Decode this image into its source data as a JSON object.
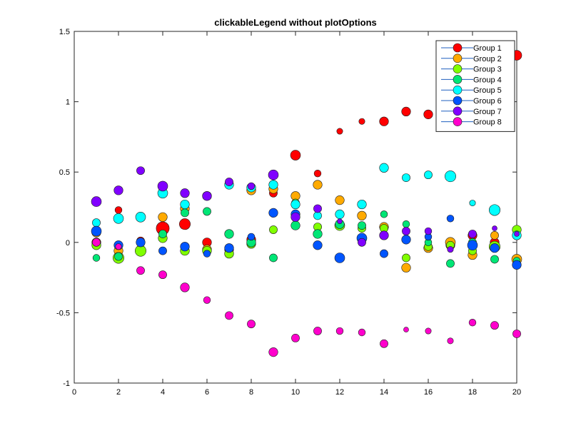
{
  "chart_data": {
    "type": "scatter",
    "title": "clickableLegend without plotOptions",
    "xlabel": "",
    "ylabel": "",
    "xlim": [
      0,
      20
    ],
    "ylim": [
      -1,
      1.5
    ],
    "xticks": [
      "0",
      "2",
      "4",
      "6",
      "8",
      "10",
      "12",
      "14",
      "16",
      "18",
      "20"
    ],
    "yticks": [
      "-1",
      "-0.5",
      "0",
      "0.5",
      "1",
      "1.5"
    ],
    "grid": false,
    "legend_position": "top-right",
    "x": [
      1,
      2,
      3,
      4,
      5,
      6,
      7,
      8,
      9,
      10,
      11,
      12,
      13,
      14,
      15,
      16,
      17,
      18,
      19,
      20
    ],
    "series": [
      {
        "name": "Group 1",
        "color": "#ff0000",
        "values": [
          0.0,
          0.23,
          0.01,
          0.1,
          0.13,
          0.0,
          -0.05,
          0.02,
          0.35,
          0.62,
          0.49,
          0.79,
          0.86,
          0.86,
          0.93,
          0.91,
          -0.02,
          0.05,
          0.0,
          1.33
        ],
        "sizes": [
          0.9,
          0.7,
          0.8,
          1.3,
          1.1,
          0.9,
          0.9,
          0.9,
          0.8,
          1.0,
          0.7,
          0.6,
          0.6,
          0.9,
          0.9,
          0.9,
          0.9,
          0.9,
          0.9,
          1.0
        ]
      },
      {
        "name": "Group 2",
        "color": "#ffaa00",
        "values": [
          0.07,
          -0.06,
          -0.05,
          0.18,
          0.24,
          -0.05,
          -0.08,
          0.37,
          0.38,
          0.33,
          0.41,
          0.3,
          0.19,
          0.11,
          -0.18,
          -0.04,
          0.0,
          -0.09,
          0.05,
          -0.12
        ],
        "sizes": [
          0.9,
          0.9,
          0.9,
          0.9,
          0.9,
          0.9,
          0.9,
          0.9,
          0.9,
          0.9,
          0.9,
          0.9,
          0.9,
          0.9,
          0.9,
          0.9,
          1.0,
          0.9,
          0.8,
          1.0
        ]
      },
      {
        "name": "Group 3",
        "color": "#80ff00",
        "values": [
          -0.02,
          -0.11,
          -0.06,
          0.03,
          -0.06,
          -0.06,
          -0.08,
          -0.01,
          0.09,
          0.28,
          0.11,
          0.12,
          0.1,
          0.1,
          -0.11,
          -0.03,
          -0.02,
          -0.06,
          -0.03,
          0.09
        ],
        "sizes": [
          0.9,
          1.1,
          1.1,
          0.9,
          0.9,
          0.9,
          0.9,
          0.9,
          0.8,
          0.8,
          0.8,
          1.0,
          0.8,
          0.8,
          0.8,
          0.8,
          0.8,
          0.8,
          1.1,
          0.9
        ]
      },
      {
        "name": "Group 4",
        "color": "#00e676",
        "values": [
          -0.11,
          -0.1,
          0.0,
          0.06,
          0.21,
          0.22,
          0.06,
          0.0,
          -0.11,
          0.12,
          0.06,
          0.13,
          0.12,
          0.2,
          0.13,
          0.0,
          -0.15,
          0.0,
          -0.12,
          -0.13
        ],
        "sizes": [
          0.7,
          0.8,
          0.8,
          0.8,
          0.8,
          0.8,
          0.9,
          0.9,
          0.8,
          0.9,
          0.9,
          0.9,
          0.8,
          0.7,
          0.7,
          0.7,
          0.8,
          0.8,
          0.8,
          0.7
        ]
      },
      {
        "name": "Group 5",
        "color": "#00ffff",
        "values": [
          0.14,
          0.17,
          0.18,
          0.35,
          0.27,
          0.33,
          0.41,
          0.39,
          0.41,
          0.27,
          0.19,
          0.2,
          0.27,
          0.53,
          0.46,
          0.48,
          0.47,
          0.28,
          0.23,
          0.05
        ],
        "sizes": [
          0.8,
          1.0,
          1.0,
          1.0,
          0.9,
          0.9,
          0.9,
          0.9,
          0.9,
          0.9,
          0.8,
          0.9,
          0.9,
          0.9,
          0.8,
          0.8,
          1.1,
          0.6,
          1.1,
          0.9
        ]
      },
      {
        "name": "Group 6",
        "color": "#0055ff",
        "values": [
          0.08,
          -0.02,
          0.0,
          -0.06,
          -0.03,
          -0.08,
          -0.04,
          0.04,
          0.21,
          0.2,
          -0.02,
          -0.11,
          0.03,
          -0.08,
          0.02,
          0.04,
          0.17,
          -0.02,
          -0.04,
          -0.16
        ],
        "sizes": [
          1.0,
          0.9,
          0.9,
          0.8,
          0.9,
          0.7,
          0.9,
          0.7,
          0.9,
          0.9,
          0.9,
          1.0,
          1.0,
          0.8,
          0.9,
          0.7,
          0.7,
          1.0,
          0.9,
          0.9
        ]
      },
      {
        "name": "Group 7",
        "color": "#8000ff",
        "values": [
          0.29,
          0.37,
          0.51,
          0.4,
          0.35,
          0.33,
          0.43,
          0.4,
          0.48,
          0.18,
          0.24,
          0.15,
          0.0,
          0.05,
          0.08,
          0.08,
          -0.05,
          0.06,
          0.1,
          0.06
        ],
        "sizes": [
          1.0,
          0.9,
          0.8,
          1.0,
          0.9,
          0.9,
          0.8,
          0.7,
          1.0,
          0.9,
          0.8,
          0.5,
          0.8,
          0.9,
          0.8,
          0.7,
          0.6,
          0.8,
          0.5,
          0.5
        ]
      },
      {
        "name": "Group 8",
        "color": "#ff00cc",
        "values": [
          0.0,
          -0.03,
          -0.2,
          -0.23,
          -0.32,
          -0.41,
          -0.52,
          -0.58,
          -0.78,
          -0.68,
          -0.63,
          -0.63,
          -0.64,
          -0.72,
          -0.62,
          -0.63,
          -0.7,
          -0.57,
          -0.59,
          -0.65
        ],
        "sizes": [
          0.8,
          0.6,
          0.8,
          0.8,
          0.9,
          0.7,
          0.8,
          0.8,
          0.9,
          0.8,
          0.8,
          0.7,
          0.7,
          0.8,
          0.5,
          0.6,
          0.6,
          0.7,
          0.8,
          0.8
        ]
      }
    ]
  }
}
